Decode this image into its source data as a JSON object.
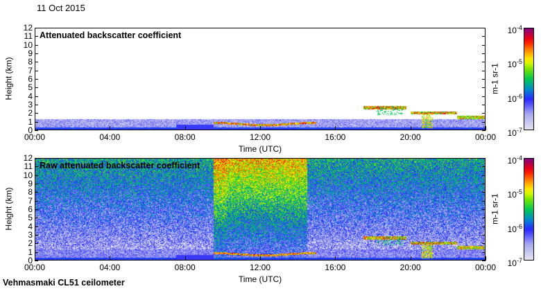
{
  "date": "11 Oct 2015",
  "footer": "Vehmasmaki CL51 ceilometer",
  "chart_data": [
    {
      "type": "heatmap",
      "title": "Attenuated backscatter coefficient",
      "xlabel": "Time (UTC)",
      "ylabel": "Height (km)",
      "xticks": [
        "00:00",
        "04:00",
        "08:00",
        "12:00",
        "16:00",
        "20:00",
        "00:00"
      ],
      "xlim_hours": [
        0,
        24
      ],
      "yticks": [
        "0",
        "1",
        "2",
        "3",
        "4",
        "5",
        "6",
        "7",
        "8",
        "9",
        "10",
        "11",
        "12"
      ],
      "ylim": [
        0,
        12
      ],
      "colorbar": {
        "label": "m-1 sr-1",
        "ticks": [
          "10-7",
          "10-6",
          "10-5",
          "10-4"
        ],
        "range": [
          1e-07,
          0.0001
        ],
        "scale": "log"
      },
      "features": [
        {
          "desc": "boundary layer",
          "hours": [
            0,
            24
          ],
          "km": [
            0,
            1.3
          ]
        },
        {
          "hours": [
            9.5,
            15
          ],
          "km": [
            0.5,
            0.9
          ]
        },
        {
          "hours": [
            17.5,
            19.8
          ],
          "km": [
            2.4,
            2.8
          ]
        },
        {
          "hours": [
            20,
            22.5
          ],
          "km": [
            1.7,
            2.2
          ]
        },
        {
          "hours": [
            22.5,
            24
          ],
          "km": [
            1.3,
            1.7
          ]
        }
      ]
    },
    {
      "type": "heatmap",
      "title": "Raw attenuated backscatter coefficient",
      "xlabel": "Time (UTC)",
      "ylabel": "Height (km)",
      "xticks": [
        "00:00",
        "04:00",
        "08:00",
        "12:00",
        "16:00",
        "20:00",
        "00:00"
      ],
      "xlim_hours": [
        0,
        24
      ],
      "yticks": [
        "0",
        "1",
        "2",
        "3",
        "4",
        "5",
        "6",
        "7",
        "8",
        "9",
        "10",
        "11",
        "12"
      ],
      "ylim": [
        0,
        12
      ],
      "colorbar": {
        "label": "m-1 sr-1",
        "ticks": [
          "10-7",
          "10-6",
          "10-5",
          "10-4"
        ],
        "range": [
          1e-07,
          0.0001
        ],
        "scale": "log"
      }
    }
  ]
}
